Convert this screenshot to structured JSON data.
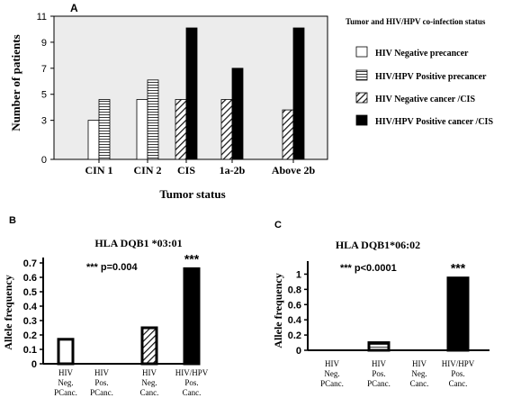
{
  "chart_data": [
    {
      "panel": "A",
      "type": "bar",
      "title": "",
      "xlabel": "Tumor status",
      "ylabel": "Number of patients",
      "ylim": [
        0,
        11
      ],
      "yticks": [
        0,
        3,
        5,
        7,
        9,
        11
      ],
      "grid": false,
      "legend_title": "Tumor and HIV/HPV co-infection status",
      "legend_position": "right",
      "categories": [
        "CIN 1",
        "CIN 2",
        "CIS",
        "1a-2b",
        "Above 2b"
      ],
      "series": [
        {
          "name": "HIV Negative precancer",
          "fill": "white",
          "values": [
            3.0,
            4.6,
            null,
            null,
            null
          ]
        },
        {
          "name": "HIV/HPV Positive precancer",
          "fill": "horizontal-lines",
          "values": [
            4.6,
            6.1,
            null,
            null,
            null
          ]
        },
        {
          "name": "HIV Negative cancer /CIS",
          "fill": "diagonal-hatch",
          "values": [
            null,
            null,
            4.6,
            4.6,
            3.8
          ]
        },
        {
          "name": "HIV/HPV Positive cancer /CIS",
          "fill": "black",
          "values": [
            null,
            null,
            10.1,
            7.0,
            10.1
          ]
        }
      ]
    },
    {
      "panel": "B",
      "type": "bar",
      "title": "HLA DQB1 *03:01",
      "ylabel": "Allele frequency",
      "ylim": [
        0,
        0.7
      ],
      "yticks": [
        "0",
        "0.1",
        "0.2",
        "0.3",
        "0.4",
        "0.5",
        "0.6",
        "0.7"
      ],
      "annotation": "*** p=0.004",
      "significance_mark": "***",
      "categories": [
        [
          "HIV",
          "Neg.",
          "PCanc."
        ],
        [
          "HIV",
          "Pos.",
          "PCanc."
        ],
        [
          "HIV",
          "Neg.",
          "Canc."
        ],
        [
          "HIV/HPV",
          "Pos.",
          "Canc."
        ]
      ],
      "values": [
        0.17,
        0.0,
        0.25,
        0.66
      ],
      "fills": [
        "white",
        "horizontal-lines",
        "diagonal-hatch",
        "black"
      ]
    },
    {
      "panel": "C",
      "type": "bar",
      "title": "HLA DQB1*06:02",
      "ylabel": "Allele frequency",
      "ylim": [
        0,
        1.1
      ],
      "yticks": [
        "0",
        "0.2",
        "0.4",
        "0.6",
        "0.8",
        "1"
      ],
      "annotation": "*** p<0.0001",
      "significance_mark": "***",
      "categories": [
        [
          "HIV",
          "Neg.",
          "PCanc."
        ],
        [
          "HIV",
          "Pos.",
          "PCanc."
        ],
        [
          "HIV",
          "Neg.",
          "Canc."
        ],
        [
          "HIV/HPV",
          "Pos.",
          "Canc."
        ]
      ],
      "values": [
        0.0,
        0.1,
        0.0,
        0.95
      ],
      "fills": [
        "white",
        "horizontal-lines",
        "diagonal-hatch",
        "black"
      ]
    }
  ],
  "panel_labels": [
    "A",
    "B",
    "C"
  ]
}
